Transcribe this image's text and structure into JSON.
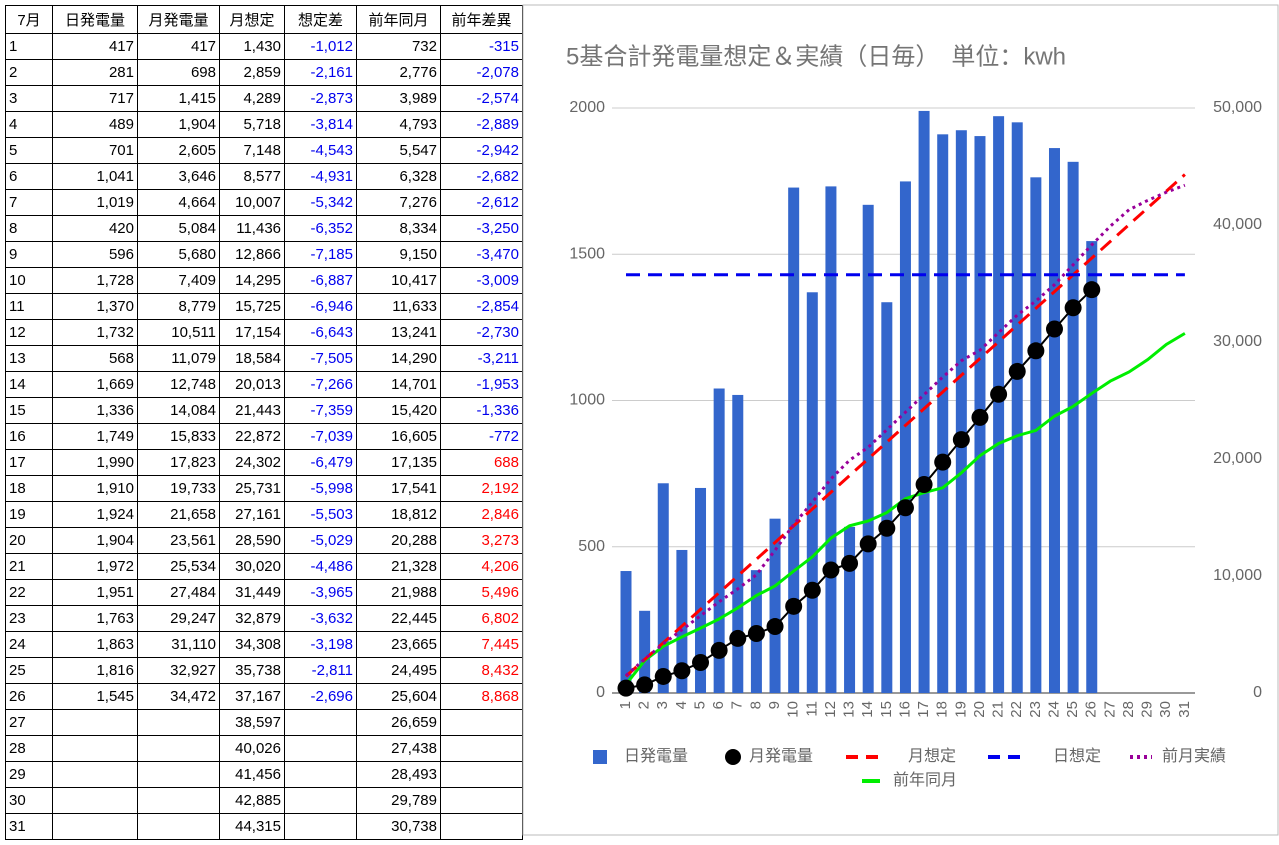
{
  "table": {
    "header": [
      "7月",
      "日発電量",
      "月発電量",
      "月想定",
      "想定差",
      "前年同月",
      "前年差異"
    ],
    "rows": [
      [
        "1",
        "417",
        "417",
        "1,430",
        "-1,012",
        "732",
        "-315"
      ],
      [
        "2",
        "281",
        "698",
        "2,859",
        "-2,161",
        "2,776",
        "-2,078"
      ],
      [
        "3",
        "717",
        "1,415",
        "4,289",
        "-2,873",
        "3,989",
        "-2,574"
      ],
      [
        "4",
        "489",
        "1,904",
        "5,718",
        "-3,814",
        "4,793",
        "-2,889"
      ],
      [
        "5",
        "701",
        "2,605",
        "7,148",
        "-4,543",
        "5,547",
        "-2,942"
      ],
      [
        "6",
        "1,041",
        "3,646",
        "8,577",
        "-4,931",
        "6,328",
        "-2,682"
      ],
      [
        "7",
        "1,019",
        "4,664",
        "10,007",
        "-5,342",
        "7,276",
        "-2,612"
      ],
      [
        "8",
        "420",
        "5,084",
        "11,436",
        "-6,352",
        "8,334",
        "-3,250"
      ],
      [
        "9",
        "596",
        "5,680",
        "12,866",
        "-7,185",
        "9,150",
        "-3,470"
      ],
      [
        "10",
        "1,728",
        "7,409",
        "14,295",
        "-6,887",
        "10,417",
        "-3,009"
      ],
      [
        "11",
        "1,370",
        "8,779",
        "15,725",
        "-6,946",
        "11,633",
        "-2,854"
      ],
      [
        "12",
        "1,732",
        "10,511",
        "17,154",
        "-6,643",
        "13,241",
        "-2,730"
      ],
      [
        "13",
        "568",
        "11,079",
        "18,584",
        "-7,505",
        "14,290",
        "-3,211"
      ],
      [
        "14",
        "1,669",
        "12,748",
        "20,013",
        "-7,266",
        "14,701",
        "-1,953"
      ],
      [
        "15",
        "1,336",
        "14,084",
        "21,443",
        "-7,359",
        "15,420",
        "-1,336"
      ],
      [
        "16",
        "1,749",
        "15,833",
        "22,872",
        "-7,039",
        "16,605",
        "-772"
      ],
      [
        "17",
        "1,990",
        "17,823",
        "24,302",
        "-6,479",
        "17,135",
        "688"
      ],
      [
        "18",
        "1,910",
        "19,733",
        "25,731",
        "-5,998",
        "17,541",
        "2,192"
      ],
      [
        "19",
        "1,924",
        "21,658",
        "27,161",
        "-5,503",
        "18,812",
        "2,846"
      ],
      [
        "20",
        "1,904",
        "23,561",
        "28,590",
        "-5,029",
        "20,288",
        "3,273"
      ],
      [
        "21",
        "1,972",
        "25,534",
        "30,020",
        "-4,486",
        "21,328",
        "4,206"
      ],
      [
        "22",
        "1,951",
        "27,484",
        "31,449",
        "-3,965",
        "21,988",
        "5,496"
      ],
      [
        "23",
        "1,763",
        "29,247",
        "32,879",
        "-3,632",
        "22,445",
        "6,802"
      ],
      [
        "24",
        "1,863",
        "31,110",
        "34,308",
        "-3,198",
        "23,665",
        "7,445"
      ],
      [
        "25",
        "1,816",
        "32,927",
        "35,738",
        "-2,811",
        "24,495",
        "8,432"
      ],
      [
        "26",
        "1,545",
        "34,472",
        "37,167",
        "-2,696",
        "25,604",
        "8,868"
      ],
      [
        "27",
        null,
        null,
        "38,597",
        null,
        "26,659",
        null
      ],
      [
        "28",
        null,
        null,
        "40,026",
        null,
        "27,438",
        null
      ],
      [
        "29",
        null,
        null,
        "41,456",
        null,
        "28,493",
        null
      ],
      [
        "30",
        null,
        null,
        "42,885",
        null,
        "29,789",
        null
      ],
      [
        "31",
        null,
        null,
        "44,315",
        null,
        "30,738",
        null
      ]
    ]
  },
  "chart_data": {
    "type": "combo",
    "title": "5基合計発電量想定＆実績（日毎）　単位：kwh",
    "categories": [
      "1",
      "2",
      "3",
      "4",
      "5",
      "6",
      "7",
      "8",
      "9",
      "10",
      "11",
      "12",
      "13",
      "14",
      "15",
      "16",
      "17",
      "18",
      "19",
      "20",
      "21",
      "22",
      "23",
      "24",
      "25",
      "26",
      "27",
      "28",
      "29",
      "30",
      "31"
    ],
    "ylim": [
      0,
      2000
    ],
    "yticks": [
      0,
      500,
      1000,
      1500,
      2000
    ],
    "y2lim": [
      0,
      50000
    ],
    "y2ticks": [
      0,
      {
        "value": 10000,
        "label": "10,000"
      },
      {
        "value": 20000,
        "label": "20,000"
      },
      {
        "value": 30000,
        "label": "30,000"
      },
      {
        "value": 40000,
        "label": "40,000"
      },
      {
        "value": 50000,
        "label": "50,000"
      }
    ],
    "grid": true,
    "series": [
      {
        "name": "日発電量",
        "style": "bar",
        "color": "#3366cc",
        "values": [
          417,
          281,
          717,
          489,
          701,
          1041,
          1019,
          420,
          596,
          1728,
          1370,
          1732,
          568,
          1669,
          1336,
          1749,
          1990,
          1910,
          1924,
          1904,
          1972,
          1951,
          1763,
          1863,
          1816,
          1545,
          null,
          null,
          null,
          null,
          null
        ]
      },
      {
        "name": "月発電量",
        "style": "dots",
        "color": "#000000",
        "axis": "y2",
        "values": [
          417,
          698,
          1415,
          1904,
          2605,
          3646,
          4664,
          5084,
          5680,
          7409,
          8779,
          10511,
          11079,
          12748,
          14084,
          15833,
          17823,
          19733,
          21658,
          23561,
          25534,
          27484,
          29247,
          31110,
          32927,
          34472,
          null,
          null,
          null,
          null,
          null
        ]
      },
      {
        "name": "月想定",
        "style": "dashed",
        "color": "#ff0000",
        "axis": "y2",
        "values": [
          1430,
          2859,
          4289,
          5718,
          7148,
          8577,
          10007,
          11436,
          12866,
          14295,
          15725,
          17154,
          18584,
          20013,
          21443,
          22872,
          24302,
          25731,
          27161,
          28590,
          30020,
          31449,
          32879,
          34308,
          35738,
          37167,
          38597,
          40026,
          41456,
          42885,
          44315
        ]
      },
      {
        "name": "日想定",
        "style": "dashed",
        "color": "#0000ee",
        "values": [
          1430,
          1430,
          1430,
          1430,
          1430,
          1430,
          1430,
          1430,
          1430,
          1430,
          1430,
          1430,
          1430,
          1430,
          1430,
          1430,
          1430,
          1430,
          1430,
          1430,
          1430,
          1430,
          1430,
          1430,
          1430,
          1430,
          1430,
          1430,
          1430,
          1430,
          1430
        ]
      },
      {
        "name": "前月実績",
        "style": "dotted",
        "color": "#990099",
        "axis": "y2",
        "values": [
          1500,
          2900,
          4200,
          5400,
          6600,
          7800,
          8900,
          10100,
          12200,
          14400,
          16300,
          18300,
          19900,
          21000,
          22500,
          24000,
          25500,
          27000,
          28400,
          29300,
          30800,
          32300,
          33500,
          34900,
          36600,
          38300,
          39900,
          41300,
          42100,
          42800,
          43400
        ]
      },
      {
        "name": "前年同月",
        "style": "solid",
        "color": "#00ee00",
        "axis": "y2",
        "values": [
          732,
          2776,
          3989,
          4793,
          5547,
          6328,
          7276,
          8334,
          9150,
          10417,
          11633,
          13241,
          14290,
          14701,
          15420,
          16605,
          17135,
          17541,
          18812,
          20288,
          21328,
          21988,
          22445,
          23665,
          24495,
          25604,
          26659,
          27438,
          28493,
          29789,
          30738
        ]
      }
    ]
  }
}
